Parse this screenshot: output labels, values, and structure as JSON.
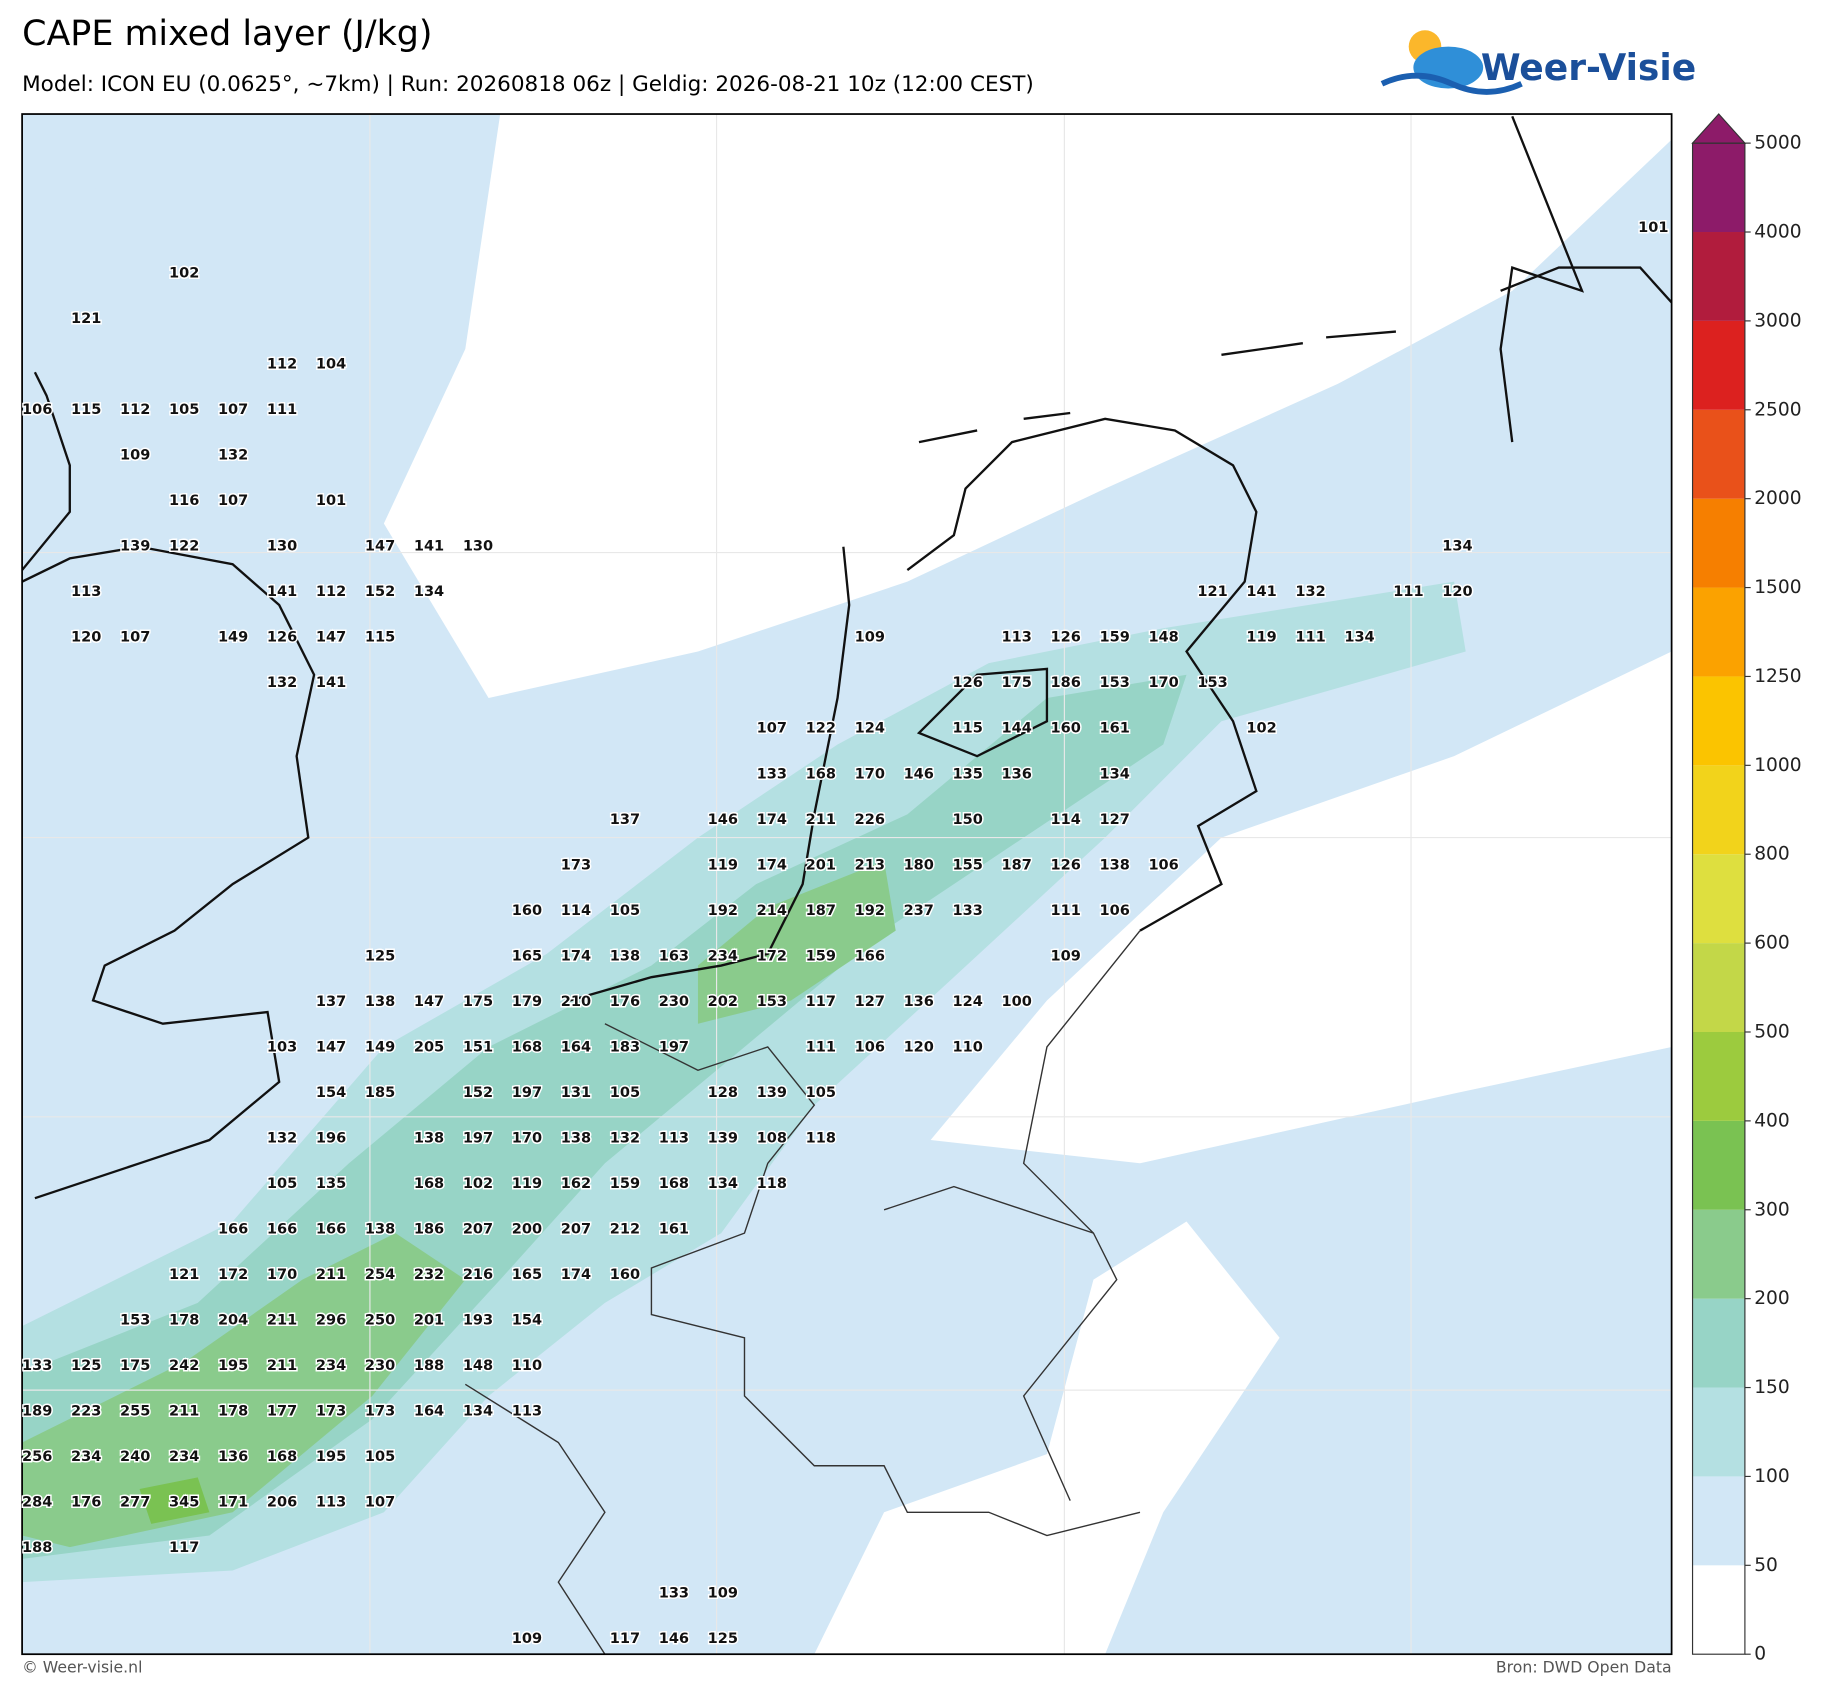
{
  "header": {
    "title": "CAPE mixed layer (J/kg)",
    "subtitle": "Model: ICON EU (0.0625°, ~7km)  |  Run: 20260818 06z  |  Geldig: 2026-08-21 10z (12:00 CEST)",
    "logo": "Weer-Visie"
  },
  "colorbar": {
    "ticks": [
      0,
      50,
      100,
      150,
      200,
      300,
      400,
      500,
      600,
      800,
      1000,
      1250,
      1500,
      2000,
      2500,
      3000,
      4000,
      5000
    ],
    "colors": [
      "#ffffff",
      "#d2e7f6",
      "#b4e0e2",
      "#97d4c6",
      "#8acb8c",
      "#7ac252",
      "#9ccb3e",
      "#c3d748",
      "#dedf3f",
      "#f2d31b",
      "#fbc400",
      "#fba200",
      "#f67f00",
      "#e9511a",
      "#dc211f",
      "#b11c3d",
      "#8d1b69"
    ]
  },
  "cape_labels": [
    [
      101
    ],
    [
      102
    ],
    [
      121
    ],
    [
      112,
      104
    ],
    [
      106,
      115,
      112,
      105,
      107,
      111
    ],
    [
      109,
      132
    ],
    [
      116,
      107,
      101
    ],
    [
      139,
      122,
      130,
      147,
      141,
      130,
      134
    ],
    [
      113,
      141,
      112,
      152,
      134,
      121,
      141,
      132,
      111,
      120
    ],
    [
      120,
      107,
      149,
      126,
      147,
      115,
      109,
      113,
      126,
      159,
      148,
      119,
      111,
      134
    ],
    [
      132,
      141,
      126,
      175,
      186,
      153,
      170,
      153
    ],
    [
      107,
      122,
      124,
      115,
      144,
      160,
      161,
      102
    ],
    [
      133,
      168,
      170,
      146,
      135,
      136,
      134
    ],
    [
      137,
      146,
      174,
      211,
      226,
      150,
      114,
      127
    ],
    [
      173,
      119,
      174,
      201,
      213,
      180,
      155,
      187,
      126,
      138,
      106
    ],
    [
      160,
      114,
      105,
      192,
      214,
      187,
      192,
      237,
      133,
      111,
      106
    ],
    [
      125,
      165,
      174,
      138,
      163,
      234,
      172,
      159,
      166,
      109
    ],
    [
      137,
      138,
      147,
      175,
      179,
      210,
      176,
      230,
      202,
      153,
      117,
      127,
      136,
      124,
      100
    ],
    [
      103,
      147,
      149,
      205,
      151,
      168,
      164,
      183,
      197,
      111,
      106,
      120,
      110
    ],
    [
      154,
      185,
      152,
      197,
      131,
      105,
      128,
      139,
      105
    ],
    [
      132,
      196,
      138,
      197,
      170,
      138,
      132,
      113,
      139,
      108,
      118
    ],
    [
      105,
      135,
      168,
      102,
      119,
      162,
      159,
      168,
      134,
      118
    ],
    [
      166,
      166,
      166,
      138,
      186,
      207,
      200,
      207,
      212,
      161
    ],
    [
      121,
      172,
      170,
      211,
      254,
      232,
      216,
      165,
      174,
      160
    ],
    [
      153,
      178,
      204,
      211,
      296,
      250,
      201,
      193,
      154
    ],
    [
      133,
      125,
      175,
      242,
      195,
      211,
      234,
      230,
      188,
      148,
      110
    ],
    [
      189,
      223,
      255,
      211,
      178,
      177,
      173,
      173,
      164,
      134,
      113
    ],
    [
      256,
      234,
      240,
      234,
      136,
      168,
      195,
      105
    ],
    [
      284,
      176,
      277,
      345,
      171,
      206,
      113,
      107
    ],
    [
      188,
      117
    ],
    [
      133,
      109
    ],
    [
      109,
      117,
      146,
      125
    ]
  ],
  "footer": {
    "left": "© Weer-visie.nl",
    "right": "Bron: DWD Open Data"
  }
}
